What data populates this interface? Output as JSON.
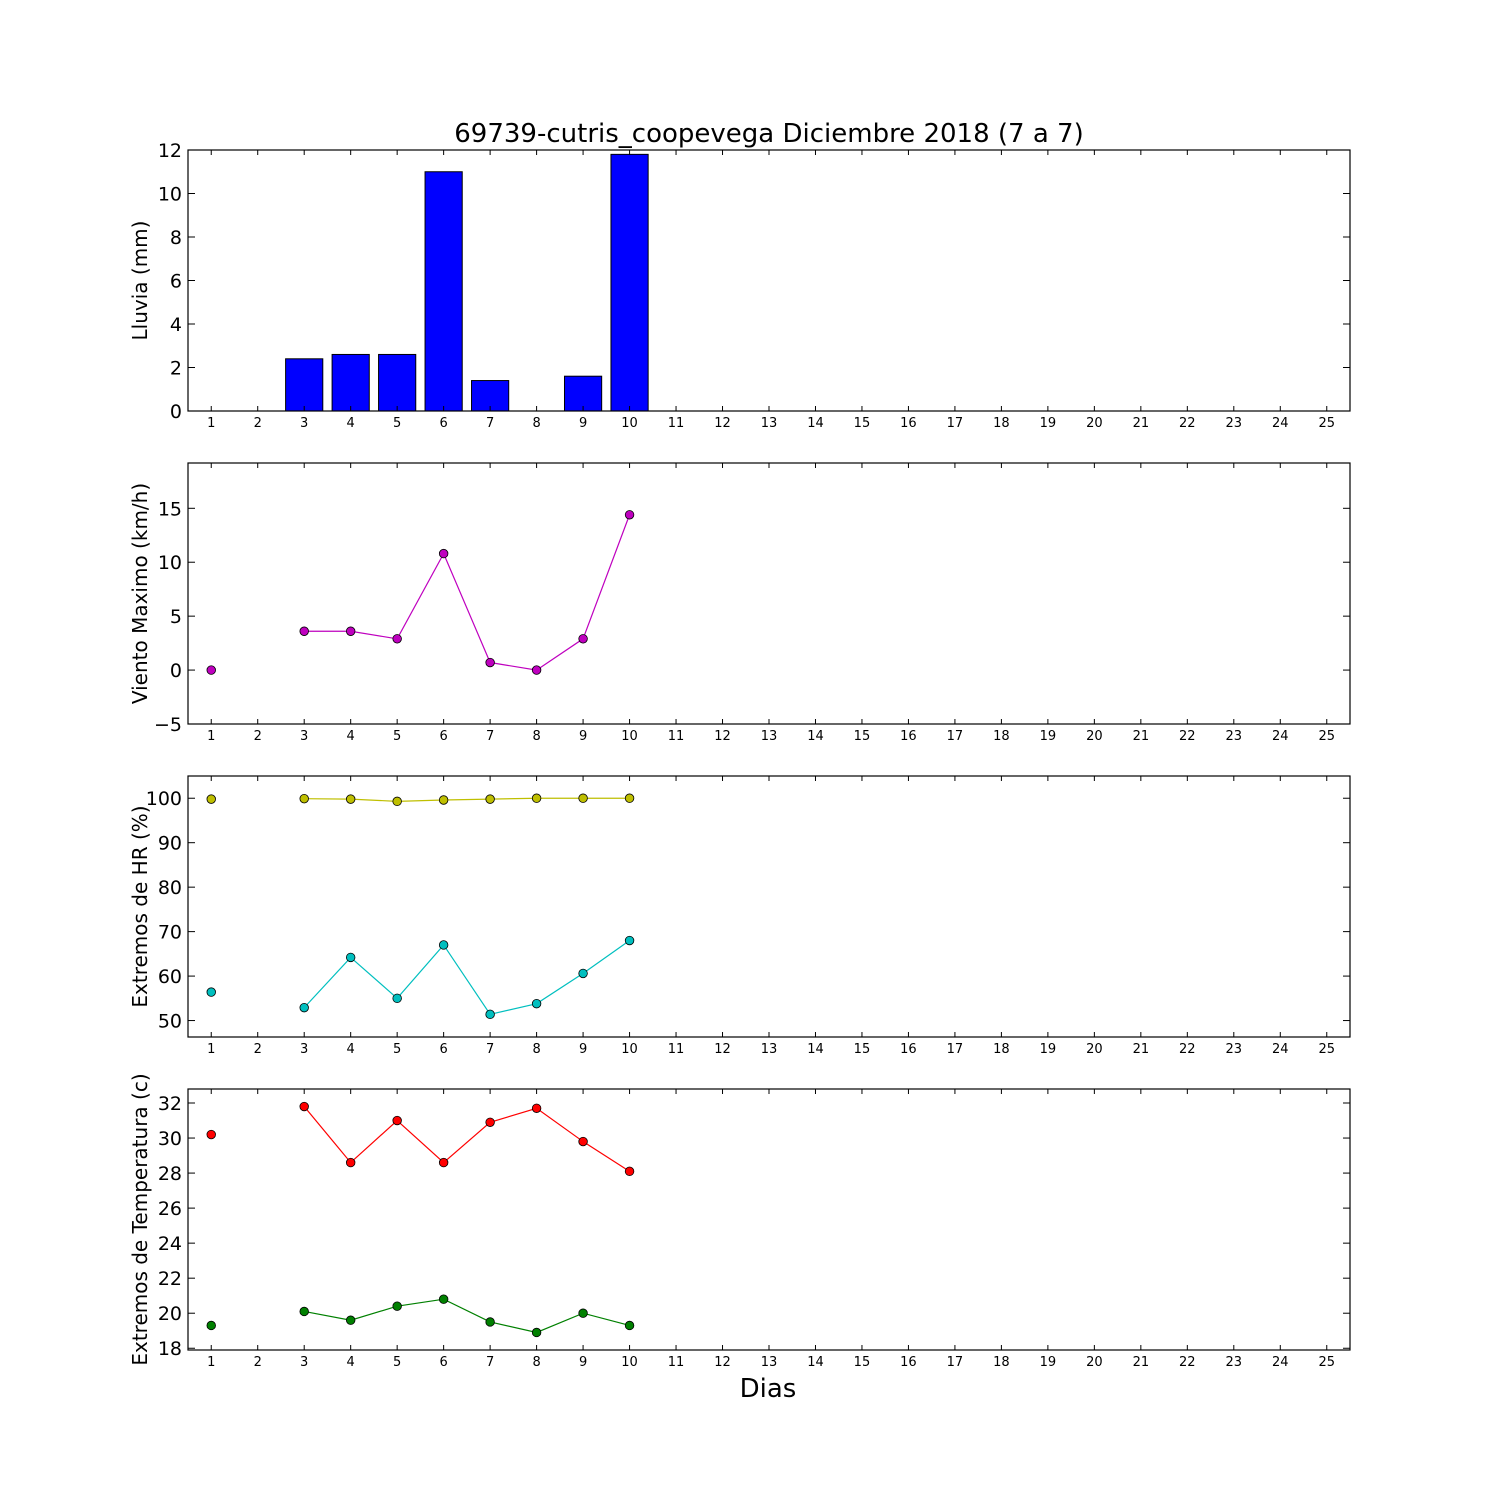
{
  "title": "69739-cutris_coopevega Diciembre 2018  (7 a 7)",
  "xlabel": "Dias",
  "chart_data": [
    {
      "type": "bar",
      "ylabel": "Lluvia (mm)",
      "x": [
        1,
        2,
        3,
        4,
        5,
        6,
        7,
        8,
        9,
        10,
        11,
        12,
        13,
        14,
        15,
        16,
        17,
        18,
        19,
        20,
        21,
        22,
        23,
        24,
        25
      ],
      "values": [
        0,
        0,
        2.4,
        2.6,
        2.6,
        11.0,
        1.4,
        0,
        1.6,
        11.8,
        0,
        0,
        0,
        0,
        0,
        0,
        0,
        0,
        0,
        0,
        0,
        0,
        0,
        0,
        0
      ],
      "ylim": [
        0,
        12
      ],
      "yticks": [
        0,
        2,
        4,
        6,
        8,
        10,
        12
      ],
      "xlim": [
        0.5,
        25.5
      ],
      "color": "#0000ff"
    },
    {
      "type": "line",
      "ylabel": "Viento Maximo (km/h)",
      "ylim": [
        -5,
        19.2
      ],
      "yticks": [
        -5,
        0,
        5,
        10,
        15
      ],
      "xlim": [
        0.5,
        25.5
      ],
      "series": [
        {
          "color": "#bf00bf",
          "points": [
            [
              1,
              0.0
            ],
            [
              3,
              3.6
            ],
            [
              4,
              3.6
            ],
            [
              5,
              2.9
            ],
            [
              6,
              10.8
            ],
            [
              7,
              0.7
            ],
            [
              8,
              0.0
            ],
            [
              9,
              2.9
            ],
            [
              10,
              14.4
            ]
          ],
          "segments": [
            [
              1
            ],
            [
              3,
              4,
              5,
              6,
              7,
              8,
              9,
              10
            ]
          ]
        }
      ]
    },
    {
      "type": "line",
      "ylabel": "Extremos de HR (%)",
      "ylim": [
        46.3,
        105
      ],
      "yticks": [
        50,
        60,
        70,
        80,
        90,
        100
      ],
      "xlim": [
        0.5,
        25.5
      ],
      "series": [
        {
          "color": "#bfbf00",
          "points": [
            [
              1,
              99.8
            ],
            [
              3,
              99.9
            ],
            [
              4,
              99.8
            ],
            [
              5,
              99.3
            ],
            [
              6,
              99.6
            ],
            [
              7,
              99.8
            ],
            [
              8,
              100
            ],
            [
              9,
              100
            ],
            [
              10,
              100
            ]
          ],
          "segments": [
            [
              1
            ],
            [
              3,
              4,
              5,
              6,
              7,
              8,
              9,
              10
            ]
          ]
        },
        {
          "color": "#00bfbf",
          "points": [
            [
              1,
              56.4
            ],
            [
              3,
              52.9
            ],
            [
              4,
              64.2
            ],
            [
              5,
              55.0
            ],
            [
              6,
              67.0
            ],
            [
              7,
              51.4
            ],
            [
              8,
              53.8
            ],
            [
              9,
              60.6
            ],
            [
              10,
              68.0
            ]
          ],
          "segments": [
            [
              1
            ],
            [
              3,
              4,
              5,
              6,
              7,
              8,
              9,
              10
            ]
          ]
        }
      ]
    },
    {
      "type": "line",
      "ylabel": "Extremos de Temperatura (c)",
      "ylim": [
        17.9,
        32.8
      ],
      "yticks": [
        18,
        20,
        22,
        24,
        26,
        28,
        30,
        32
      ],
      "xlim": [
        0.5,
        25.5
      ],
      "series": [
        {
          "color": "#ff0000",
          "points": [
            [
              1,
              30.2
            ],
            [
              3,
              31.8
            ],
            [
              4,
              28.6
            ],
            [
              5,
              31.0
            ],
            [
              6,
              28.6
            ],
            [
              7,
              30.9
            ],
            [
              8,
              31.7
            ],
            [
              9,
              29.8
            ],
            [
              10,
              28.1
            ]
          ],
          "segments": [
            [
              1
            ],
            [
              3,
              4,
              5,
              6,
              7,
              8,
              9,
              10
            ]
          ]
        },
        {
          "color": "#008000",
          "points": [
            [
              1,
              19.3
            ],
            [
              3,
              20.1
            ],
            [
              4,
              19.6
            ],
            [
              5,
              20.4
            ],
            [
              6,
              20.8
            ],
            [
              7,
              19.5
            ],
            [
              8,
              18.9
            ],
            [
              9,
              20.0
            ],
            [
              10,
              19.3
            ]
          ],
          "segments": [
            [
              1
            ],
            [
              3,
              4,
              5,
              6,
              7,
              8,
              9,
              10
            ]
          ]
        }
      ]
    }
  ]
}
